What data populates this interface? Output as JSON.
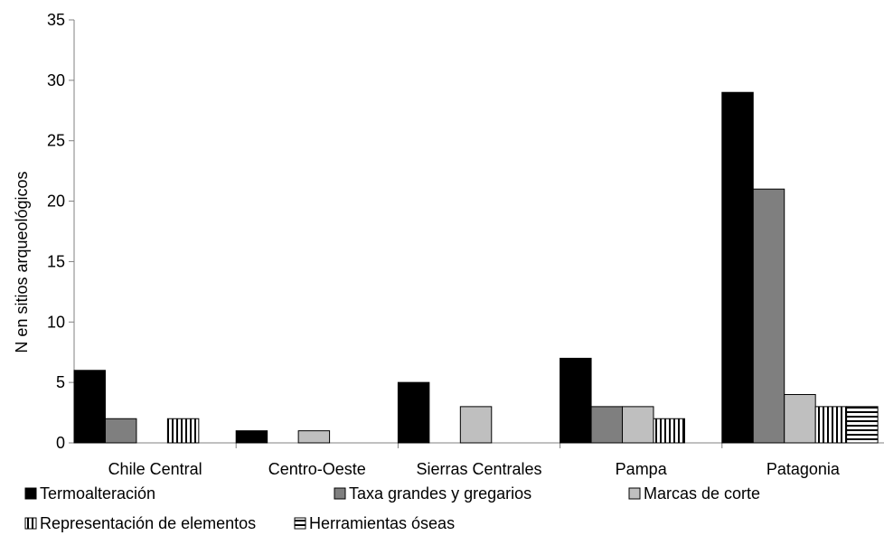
{
  "chart_data": {
    "type": "bar",
    "title": "",
    "xlabel": "",
    "ylabel": "N en sitios arqueológicos",
    "ylim": [
      0,
      35
    ],
    "yticks": [
      0,
      5,
      10,
      15,
      20,
      25,
      30,
      35
    ],
    "grid": false,
    "legend_position": "bottom",
    "categories": [
      "Chile Central",
      "Centro-Oeste",
      "Sierras Centrales",
      "Pampa",
      "Patagonia"
    ],
    "series": [
      {
        "name": "Termoalteración",
        "fill": "solid",
        "color": "#000000",
        "values": [
          6,
          1,
          5,
          7,
          29
        ]
      },
      {
        "name": "Taxa grandes y gregarios",
        "fill": "solid",
        "color": "#7f7f7f",
        "values": [
          2,
          0,
          0,
          3,
          21
        ]
      },
      {
        "name": "Marcas de corte",
        "fill": "solid",
        "color": "#bfbfbf",
        "values": [
          0,
          1,
          3,
          3,
          4
        ]
      },
      {
        "name": "Representación de elementos",
        "fill": "vertical-stripes",
        "color": "#000000",
        "values": [
          2,
          0,
          0,
          2,
          3
        ]
      },
      {
        "name": "Herramientas óseas",
        "fill": "horizontal-stripes",
        "color": "#000000",
        "values": [
          0,
          0,
          0,
          0,
          3
        ]
      }
    ]
  }
}
